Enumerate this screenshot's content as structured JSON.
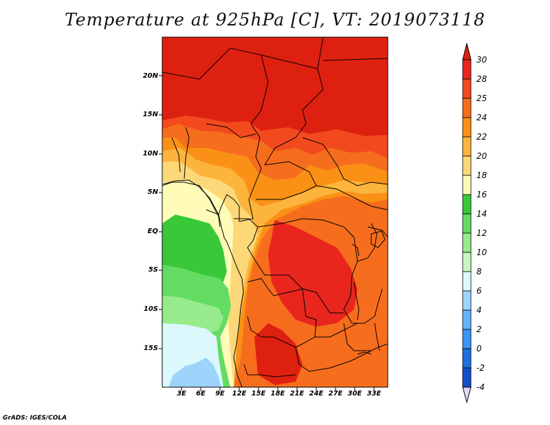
{
  "title": "Temperature at 925hPa [C], VT: 2019073118",
  "credit": "GrADS: IGES/COLA",
  "map": {
    "lat_labels": [
      "20N",
      "15N",
      "10N",
      "5N",
      "EQ",
      "5S",
      "10S",
      "15S"
    ],
    "lon_labels": [
      "3E",
      "6E",
      "9E",
      "12E",
      "15E",
      "18E",
      "21E",
      "24E",
      "27E",
      "30E",
      "33E"
    ]
  },
  "colorbar": {
    "labels": [
      "30",
      "28",
      "25",
      "24",
      "22",
      "20",
      "18",
      "16",
      "14",
      "12",
      "10",
      "8",
      "6",
      "4",
      "2",
      "0",
      "-2",
      "-4"
    ],
    "colors": [
      "#e8261e",
      "#f24a1e",
      "#f66d1e",
      "#fa9116",
      "#fcb43c",
      "#fcd878",
      "#fefcb8",
      "#38c838",
      "#64dc64",
      "#96ec8c",
      "#c8f8c0",
      "#dcf8fc",
      "#9cd4fc",
      "#64b4fc",
      "#3c94f4",
      "#1e6edc",
      "#1450c8",
      "#0c2896",
      "#060a50"
    ],
    "top_color": "#de2010",
    "bottom_color": "#e0d8f8"
  }
}
